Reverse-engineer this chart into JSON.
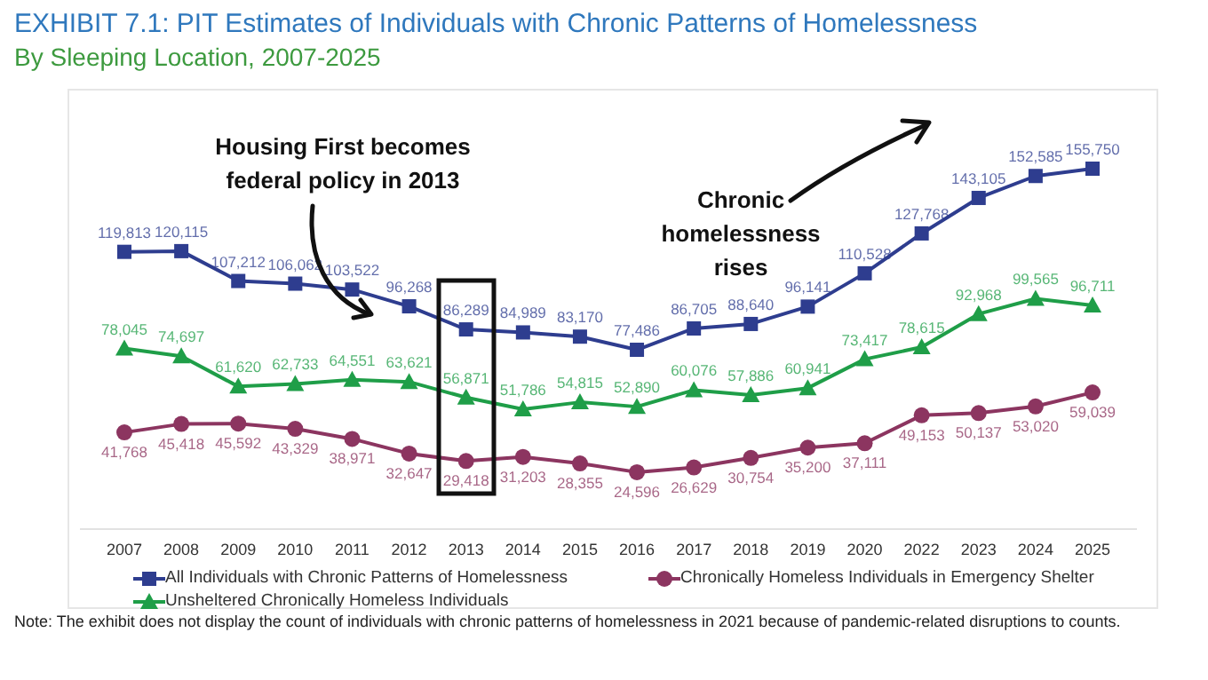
{
  "chart_data": {
    "type": "line",
    "title": "EXHIBIT 7.1: PIT Estimates of Individuals with Chronic Patterns of Homelessness",
    "subtitle": "By Sleeping Location, 2007-2025",
    "categories": [
      "2007",
      "2008",
      "2009",
      "2010",
      "2011",
      "2012",
      "2013",
      "2014",
      "2015",
      "2016",
      "2017",
      "2018",
      "2019",
      "2020",
      "2022",
      "2023",
      "2024",
      "2025"
    ],
    "series": [
      {
        "name": "All Individuals with Chronic Patterns of Homelessness",
        "color": "#2e3d8f",
        "marker": "square",
        "values": [
          119813,
          120115,
          107212,
          106062,
          103522,
          96268,
          86289,
          84989,
          83170,
          77486,
          86705,
          88640,
          96141,
          110528,
          127768,
          143105,
          152585,
          155750
        ],
        "value_labels": [
          "119,813",
          "120,115",
          "107,212",
          "106,062",
          "103,522",
          "96,268",
          "86,289",
          "84,989",
          "83,170",
          "77,486",
          "86,705",
          "88,640",
          "96,141",
          "110,528",
          "127,768",
          "143,105",
          "152,585",
          "155,750"
        ]
      },
      {
        "name": "Chronically Homeless Individuals in Emergency Shelter",
        "color": "#8c3560",
        "marker": "circle",
        "values": [
          41768,
          45418,
          45592,
          43329,
          38971,
          32647,
          29418,
          31203,
          28355,
          24596,
          26629,
          30754,
          35200,
          37111,
          49153,
          50137,
          53020,
          59039
        ],
        "value_labels": [
          "41,768",
          "45,418",
          "45,592",
          "43,329",
          "38,971",
          "32,647",
          "29,418",
          "31,203",
          "28,355",
          "24,596",
          "26,629",
          "30,754",
          "35,200",
          "37,111",
          "49,153",
          "50,137",
          "53,020",
          "59,039"
        ]
      },
      {
        "name": "Unsheltered Chronically Homeless Individuals",
        "color": "#1f9e48",
        "marker": "triangle",
        "values": [
          78045,
          74697,
          61620,
          62733,
          64551,
          63621,
          56871,
          51786,
          54815,
          52890,
          60076,
          57886,
          60941,
          73417,
          78615,
          92968,
          99565,
          96711
        ],
        "value_labels": [
          "78,045",
          "74,697",
          "61,620",
          "62,733",
          "64,551",
          "63,621",
          "56,871",
          "51,786",
          "54,815",
          "52,890",
          "60,076",
          "57,886",
          "60,941",
          "73,417",
          "78,615",
          "92,968",
          "99,565",
          "96,711"
        ]
      }
    ],
    "legend": "bottom",
    "grid": false,
    "annotations": [
      "Housing First becomes federal policy in 2013",
      "Chronic homelessness rises",
      "Note: The exhibit does not display the count of individuals with chronic patterns of homelessness in 2021 because of pandemic-related disruptions to counts."
    ]
  }
}
